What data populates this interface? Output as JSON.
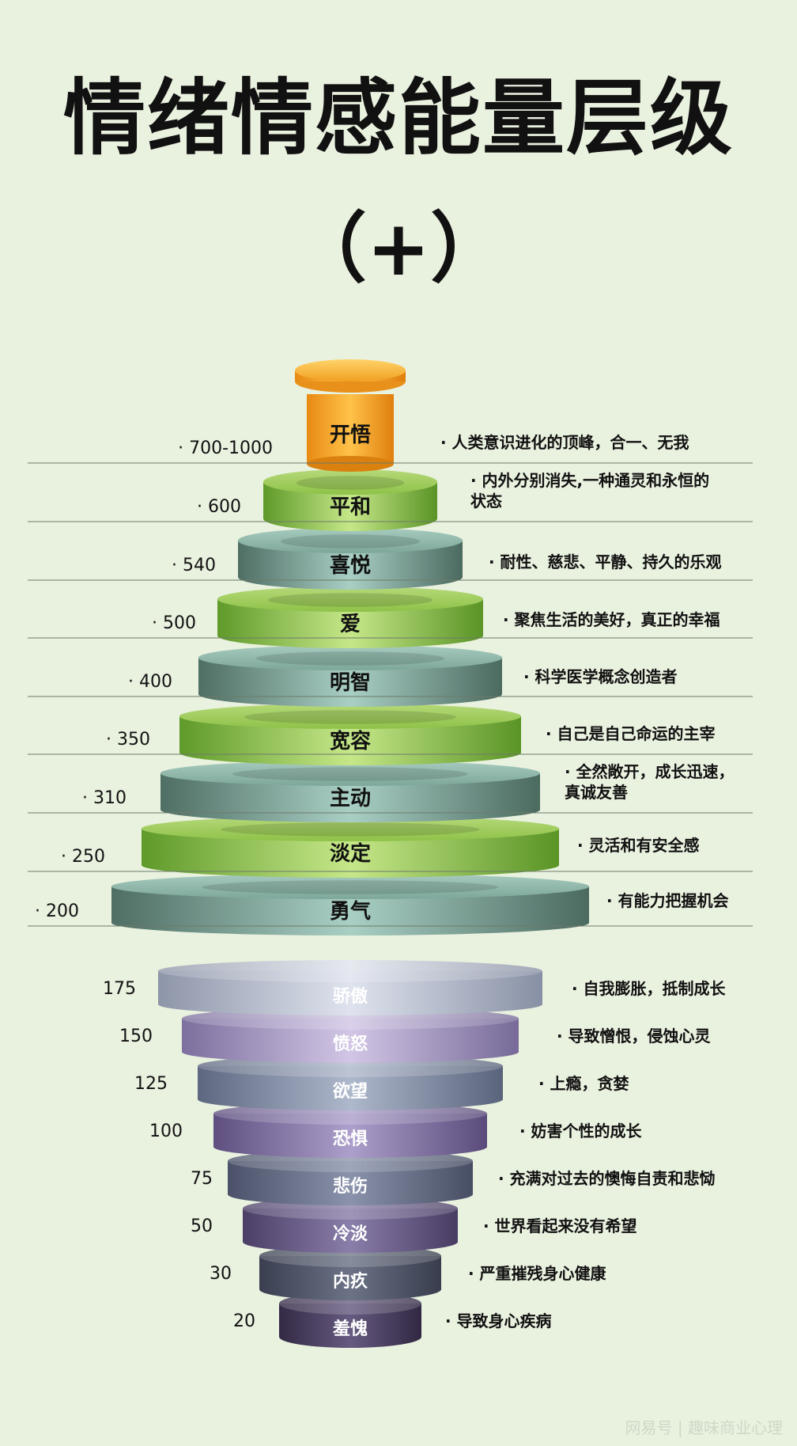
{
  "title": "情绪情感能量层级",
  "subtitle": "（+）",
  "positive_levels": [
    {
      "value": "700-1000",
      "name": "开悟",
      "desc": [
        "人类意识进化的顶峰，合一、无我"
      ],
      "style": "orange"
    },
    {
      "value": "600",
      "name": "平和",
      "desc": [
        "内外分别消失,一种通灵和永恒的",
        "状态"
      ],
      "style": "green"
    },
    {
      "value": "540",
      "name": "喜悦",
      "desc": [
        "耐性、慈悲、平静、持久的乐观"
      ],
      "style": "teal"
    },
    {
      "value": "500",
      "name": "爱",
      "desc": [
        "聚焦生活的美好，真正的幸福"
      ],
      "style": "green"
    },
    {
      "value": "400",
      "name": "明智",
      "desc": [
        "科学医学概念创造者"
      ],
      "style": "teal"
    },
    {
      "value": "350",
      "name": "宽容",
      "desc": [
        "自己是自己命运的主宰"
      ],
      "style": "green"
    },
    {
      "value": "310",
      "name": "主动",
      "desc": [
        "全然敞开，成长迅速，",
        "真诚友善"
      ],
      "style": "teal"
    },
    {
      "value": "250",
      "name": "淡定",
      "desc": [
        "灵活和有安全感"
      ],
      "style": "green"
    },
    {
      "value": "200",
      "name": "勇气",
      "desc": [
        "有能力把握机会"
      ],
      "style": "teal"
    }
  ],
  "negative_levels": [
    {
      "value": "175",
      "name": "骄傲",
      "desc": "自我膨胀，抵制成长",
      "style": "silver"
    },
    {
      "value": "150",
      "name": "愤怒",
      "desc": "导致憎恨，侵蚀心灵",
      "style": "lavender"
    },
    {
      "value": "125",
      "name": "欲望",
      "desc": "上瘾，贪婪",
      "style": "slate"
    },
    {
      "value": "100",
      "name": "恐惧",
      "desc": "妨害个性的成长",
      "style": "purple"
    },
    {
      "value": "75",
      "name": "悲伤",
      "desc": "充满对过去的懊悔自责和悲恸",
      "style": "slate2"
    },
    {
      "value": "50",
      "name": "冷淡",
      "desc": "世界看起来没有希望",
      "style": "purple2"
    },
    {
      "value": "30",
      "name": "内疚",
      "desc": "严重摧残身心健康",
      "style": "dark"
    },
    {
      "value": "20",
      "name": "羞愧",
      "desc": "导致身心疾病",
      "style": "darkpurple"
    }
  ],
  "colors": {
    "background": "#e9f1df",
    "orange": "#f3a11f",
    "green": "#8cc63f",
    "teal": "#7fa89b",
    "line": "#6e7a6a"
  },
  "watermark": "网易号 | 趣味商业心理"
}
